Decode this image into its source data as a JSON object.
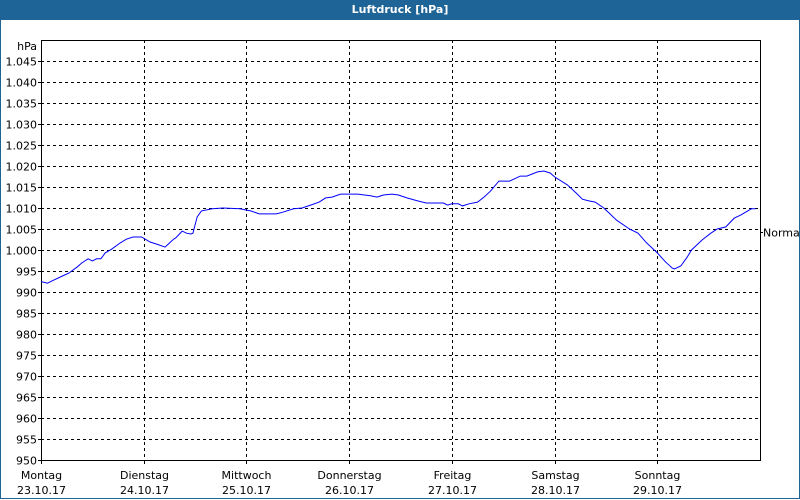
{
  "window": {
    "title": "Luftdruck [hPa]"
  },
  "chart_data": {
    "type": "line",
    "title": "Luftdruck [hPa]",
    "ylabel": "hPa",
    "ylim": [
      950,
      1050
    ],
    "yticks": [
      {
        "value": 950,
        "label": "950"
      },
      {
        "value": 955,
        "label": "955"
      },
      {
        "value": 960,
        "label": "960"
      },
      {
        "value": 965,
        "label": "965"
      },
      {
        "value": 970,
        "label": "970"
      },
      {
        "value": 975,
        "label": "975"
      },
      {
        "value": 980,
        "label": "980"
      },
      {
        "value": 985,
        "label": "985"
      },
      {
        "value": 990,
        "label": "990"
      },
      {
        "value": 995,
        "label": "995"
      },
      {
        "value": 1000,
        "label": "1.000"
      },
      {
        "value": 1005,
        "label": "1.005"
      },
      {
        "value": 1010,
        "label": "1.010"
      },
      {
        "value": 1015,
        "label": "1.015"
      },
      {
        "value": 1020,
        "label": "1.020"
      },
      {
        "value": 1025,
        "label": "1.025"
      },
      {
        "value": 1030,
        "label": "1.030"
      },
      {
        "value": 1035,
        "label": "1.035"
      },
      {
        "value": 1040,
        "label": "1.040"
      },
      {
        "value": 1045,
        "label": "1.045"
      }
    ],
    "xlim": [
      "2017-10-23T00:00",
      "2017-10-30T00:00"
    ],
    "xticks": [
      {
        "date": "2017-10-23T00:00",
        "day": "Montag",
        "label": "23.10.17"
      },
      {
        "date": "2017-10-24T00:00",
        "day": "Dienstag",
        "label": "24.10.17"
      },
      {
        "date": "2017-10-25T00:00",
        "day": "Mittwoch",
        "label": "25.10.17"
      },
      {
        "date": "2017-10-26T00:00",
        "day": "Donnerstag",
        "label": "26.10.17"
      },
      {
        "date": "2017-10-27T00:00",
        "day": "Freitag",
        "label": "27.10.17"
      },
      {
        "date": "2017-10-28T00:00",
        "day": "Samstag",
        "label": "28.10.17"
      },
      {
        "date": "2017-10-29T00:00",
        "day": "Sonntag",
        "label": "29.10.17"
      }
    ],
    "grid": true,
    "reference": {
      "label": "Normal",
      "value": 1004.3
    },
    "line_color": "#0000ff",
    "series": [
      {
        "points": [
          [
            "2017-10-23T00:00",
            992.5
          ],
          [
            "2017-10-23T01:30",
            992.1
          ],
          [
            "2017-10-23T02:30",
            992.6
          ],
          [
            "2017-10-23T05:00",
            993.8
          ],
          [
            "2017-10-23T06:30",
            994.5
          ],
          [
            "2017-10-23T08:30",
            996.0
          ],
          [
            "2017-10-23T09:30",
            996.9
          ],
          [
            "2017-10-23T11:00",
            997.9
          ],
          [
            "2017-10-23T12:00",
            997.4
          ],
          [
            "2017-10-23T13:00",
            997.9
          ],
          [
            "2017-10-23T14:00",
            997.9
          ],
          [
            "2017-10-23T15:00",
            999.3
          ],
          [
            "2017-10-23T16:30",
            1000.2
          ],
          [
            "2017-10-23T18:30",
            1001.7
          ],
          [
            "2017-10-23T20:00",
            1002.6
          ],
          [
            "2017-10-23T21:30",
            1003.1
          ],
          [
            "2017-10-23T23:30",
            1003.1
          ],
          [
            "2017-10-24T01:30",
            1001.9
          ],
          [
            "2017-10-24T03:00",
            1001.4
          ],
          [
            "2017-10-24T05:00",
            1000.7
          ],
          [
            "2017-10-24T05:30",
            1001.2
          ],
          [
            "2017-10-24T07:00",
            1002.6
          ],
          [
            "2017-10-24T07:30",
            1002.9
          ],
          [
            "2017-10-24T09:00",
            1004.5
          ],
          [
            "2017-10-24T10:00",
            1004.0
          ],
          [
            "2017-10-24T11:00",
            1003.8
          ],
          [
            "2017-10-24T11:30",
            1004.0
          ],
          [
            "2017-10-24T12:30",
            1007.9
          ],
          [
            "2017-10-24T13:30",
            1009.3
          ],
          [
            "2017-10-24T16:00",
            1009.8
          ],
          [
            "2017-10-24T18:30",
            1010.0
          ],
          [
            "2017-10-24T22:30",
            1009.8
          ],
          [
            "2017-10-25T00:00",
            1009.5
          ],
          [
            "2017-10-25T01:00",
            1009.3
          ],
          [
            "2017-10-25T03:00",
            1008.6
          ],
          [
            "2017-10-25T07:00",
            1008.6
          ],
          [
            "2017-10-25T08:30",
            1009.0
          ],
          [
            "2017-10-25T11:00",
            1009.8
          ],
          [
            "2017-10-25T13:00",
            1010.0
          ],
          [
            "2017-10-25T15:00",
            1010.7
          ],
          [
            "2017-10-25T17:00",
            1011.4
          ],
          [
            "2017-10-25T18:30",
            1012.4
          ],
          [
            "2017-10-25T20:00",
            1012.6
          ],
          [
            "2017-10-25T22:00",
            1013.3
          ],
          [
            "2017-10-26T02:00",
            1013.3
          ],
          [
            "2017-10-26T05:00",
            1012.9
          ],
          [
            "2017-10-26T06:30",
            1012.6
          ],
          [
            "2017-10-26T08:00",
            1013.1
          ],
          [
            "2017-10-26T10:00",
            1013.3
          ],
          [
            "2017-10-26T11:30",
            1013.1
          ],
          [
            "2017-10-26T13:30",
            1012.4
          ],
          [
            "2017-10-26T16:00",
            1011.7
          ],
          [
            "2017-10-26T18:00",
            1011.2
          ],
          [
            "2017-10-26T22:00",
            1011.2
          ],
          [
            "2017-10-26T23:00",
            1010.7
          ],
          [
            "2017-10-27T00:00",
            1011.0
          ],
          [
            "2017-10-27T01:30",
            1011.0
          ],
          [
            "2017-10-27T02:30",
            1010.5
          ],
          [
            "2017-10-27T04:00",
            1011.0
          ],
          [
            "2017-10-27T06:00",
            1011.4
          ],
          [
            "2017-10-27T07:30",
            1012.6
          ],
          [
            "2017-10-27T09:00",
            1014.0
          ],
          [
            "2017-10-27T11:00",
            1016.4
          ],
          [
            "2017-10-27T13:30",
            1016.4
          ],
          [
            "2017-10-27T16:00",
            1017.6
          ],
          [
            "2017-10-27T17:30",
            1017.6
          ],
          [
            "2017-10-27T20:00",
            1018.6
          ],
          [
            "2017-10-27T21:30",
            1018.8
          ],
          [
            "2017-10-27T23:00",
            1018.3
          ],
          [
            "2017-10-28T00:00",
            1017.4
          ],
          [
            "2017-10-28T03:00",
            1015.5
          ],
          [
            "2017-10-28T05:00",
            1013.6
          ],
          [
            "2017-10-28T06:30",
            1012.1
          ],
          [
            "2017-10-28T08:00",
            1011.7
          ],
          [
            "2017-10-28T09:30",
            1011.4
          ],
          [
            "2017-10-28T11:30",
            1010.0
          ],
          [
            "2017-10-28T14:30",
            1007.1
          ],
          [
            "2017-10-28T17:30",
            1005.0
          ],
          [
            "2017-10-28T19:30",
            1004.0
          ],
          [
            "2017-10-28T21:30",
            1001.7
          ],
          [
            "2017-10-29T00:00",
            999.3
          ],
          [
            "2017-10-29T02:00",
            997.1
          ],
          [
            "2017-10-29T03:30",
            995.7
          ],
          [
            "2017-10-29T04:00",
            995.5
          ],
          [
            "2017-10-29T05:30",
            996.2
          ],
          [
            "2017-10-29T07:00",
            998.3
          ],
          [
            "2017-10-29T08:00",
            1000.0
          ],
          [
            "2017-10-29T10:30",
            1002.4
          ],
          [
            "2017-10-29T12:30",
            1004.0
          ],
          [
            "2017-10-29T14:00",
            1005.0
          ],
          [
            "2017-10-29T16:00",
            1005.5
          ],
          [
            "2017-10-29T18:00",
            1007.6
          ],
          [
            "2017-10-29T19:30",
            1008.3
          ],
          [
            "2017-10-29T22:00",
            1009.8
          ],
          [
            "2017-10-29T23:00",
            1009.8
          ]
        ]
      }
    ]
  }
}
